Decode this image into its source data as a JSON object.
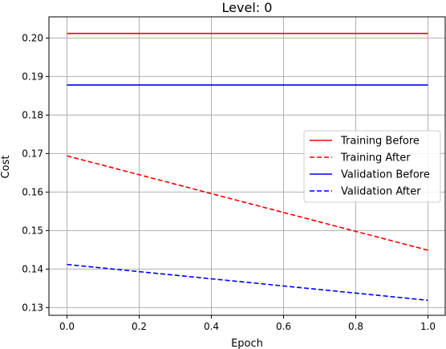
{
  "chart_data": {
    "type": "line",
    "title": "Level: 0",
    "xlabel": "Epoch",
    "ylabel": "Cost",
    "xlim": [
      -0.05,
      1.05
    ],
    "ylim": [
      0.128,
      0.2055
    ],
    "xticks": [
      0.0,
      0.2,
      0.4,
      0.6,
      0.8,
      1.0
    ],
    "xtick_labels": [
      "0.0",
      "0.2",
      "0.4",
      "0.6",
      "0.8",
      "1.0"
    ],
    "yticks": [
      0.13,
      0.14,
      0.15,
      0.16,
      0.17,
      0.18,
      0.19,
      0.2
    ],
    "ytick_labels": [
      "0.13",
      "0.14",
      "0.15",
      "0.16",
      "0.17",
      "0.18",
      "0.19",
      "0.20"
    ],
    "grid": true,
    "legend_position": "center-right",
    "series": [
      {
        "name": "Training Before",
        "x": [
          0,
          1
        ],
        "y": [
          0.2012,
          0.2012
        ],
        "color": "#ff0000",
        "dash": "solid"
      },
      {
        "name": "Training After",
        "x": [
          0,
          1
        ],
        "y": [
          0.1694,
          0.1449
        ],
        "color": "#ff0000",
        "dash": "dashed"
      },
      {
        "name": "Validation Before",
        "x": [
          0,
          1
        ],
        "y": [
          0.1878,
          0.1878
        ],
        "color": "#0000ff",
        "dash": "solid"
      },
      {
        "name": "Validation After",
        "x": [
          0,
          1
        ],
        "y": [
          0.1412,
          0.1319
        ],
        "color": "#0000ff",
        "dash": "dashed"
      }
    ]
  }
}
